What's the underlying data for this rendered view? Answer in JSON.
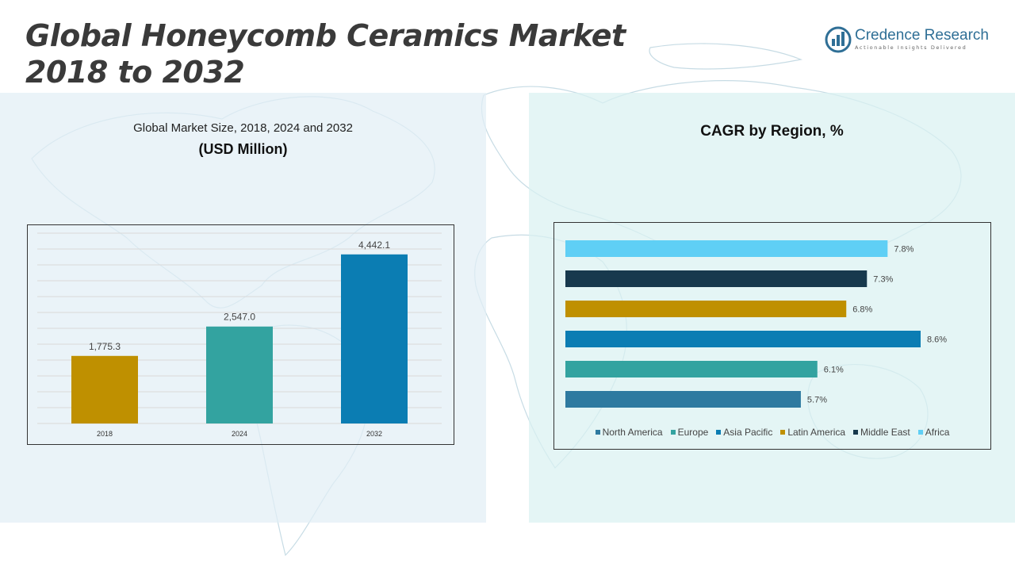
{
  "header": {
    "title_line1": "Global Honeycomb Ceramics Market",
    "title_line2": "2018 to 2032"
  },
  "logo": {
    "name": "Credence Research",
    "tagline": "Actionable Insights Delivered",
    "icon": "credence-logo-icon",
    "color": "#2f6f96"
  },
  "left_panel": {
    "title": "Global Market Size, 2018, 2024 and 2032",
    "subtitle": "(USD Million)"
  },
  "right_panel": {
    "title": "CAGR by Region, %"
  },
  "chart_data": [
    {
      "type": "bar",
      "categories": [
        "2018",
        "2024",
        "2032"
      ],
      "values": [
        1775.3,
        2547.0,
        4442.1
      ],
      "value_labels": [
        "1,775.3",
        "2,547.0",
        "4,442.1"
      ],
      "colors": [
        "#bf9000",
        "#33a3a0",
        "#0b7db3"
      ],
      "ylim": [
        0,
        5000
      ],
      "grid": true,
      "title": "Global Market Size, 2018, 2024 and 2032",
      "ylabel": "(USD Million)"
    },
    {
      "type": "bar",
      "orientation": "horizontal",
      "categories": [
        "Africa",
        "Middle East",
        "Latin America",
        "Asia Pacific",
        "Europe",
        "North America"
      ],
      "values": [
        7.8,
        7.3,
        6.8,
        8.6,
        6.1,
        5.7
      ],
      "value_labels": [
        "7.8%",
        "7.3%",
        "6.8%",
        "8.6%",
        "6.1%",
        "5.7%"
      ],
      "colors": [
        "#5fcff5",
        "#17394d",
        "#bf9000",
        "#0b7db3",
        "#33a3a0",
        "#2e7aa0"
      ],
      "xlim": [
        0,
        8.6
      ],
      "title": "CAGR by Region, %",
      "legend": {
        "placement": "bottom",
        "entries": [
          {
            "label": "North America",
            "color": "#2e7aa0"
          },
          {
            "label": "Europe",
            "color": "#33a3a0"
          },
          {
            "label": "Asia Pacific",
            "color": "#0b7db3"
          },
          {
            "label": "Latin America",
            "color": "#bf9000"
          },
          {
            "label": "Middle East",
            "color": "#17394d"
          },
          {
            "label": "Africa",
            "color": "#5fcff5"
          }
        ]
      }
    }
  ]
}
